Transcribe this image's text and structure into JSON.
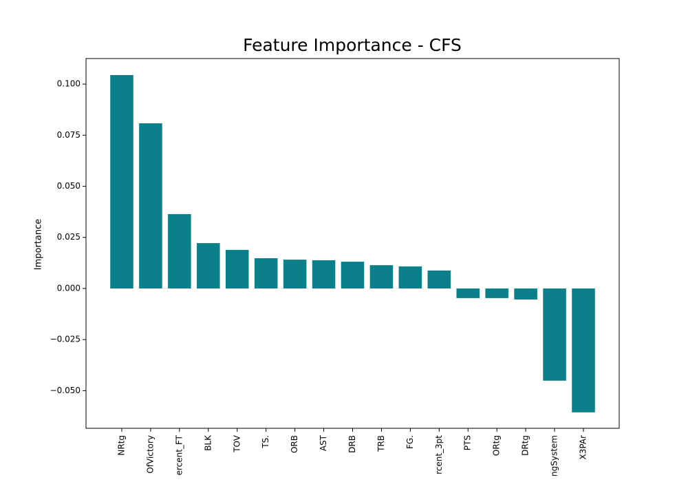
{
  "chart_data": {
    "type": "bar",
    "title": "Feature Importance - CFS",
    "y_label": "Importance",
    "categories": [
      "NRtg",
      "OfVictory",
      "ercent_FT",
      "BLK",
      "TOV",
      "TS.",
      "ORB",
      "AST",
      "DRB",
      "TRB",
      "FG.",
      "rcent_3pt",
      "PTS",
      "ORtg",
      "DRtg",
      "ngSystem",
      "X3PAr"
    ],
    "values": [
      0.1044,
      0.0808,
      0.0364,
      0.0222,
      0.0189,
      0.0148,
      0.0141,
      0.0138,
      0.0131,
      0.0114,
      0.0108,
      0.0088,
      -0.0047,
      -0.0047,
      -0.0054,
      -0.0451,
      -0.0606
    ],
    "color": "#0b7f8a",
    "ylim": [
      -0.0684,
      0.1125
    ],
    "yticks": [
      {
        "value": -0.05,
        "label": "−0.050"
      },
      {
        "value": -0.025,
        "label": "−0.025"
      },
      {
        "value": 0,
        "label": "0.000"
      },
      {
        "value": 0.025,
        "label": "0.025"
      },
      {
        "value": 0.05,
        "label": "0.050"
      },
      {
        "value": 0.075,
        "label": "0.075"
      },
      {
        "value": 0.1,
        "label": "0.100"
      }
    ],
    "grid": false
  }
}
